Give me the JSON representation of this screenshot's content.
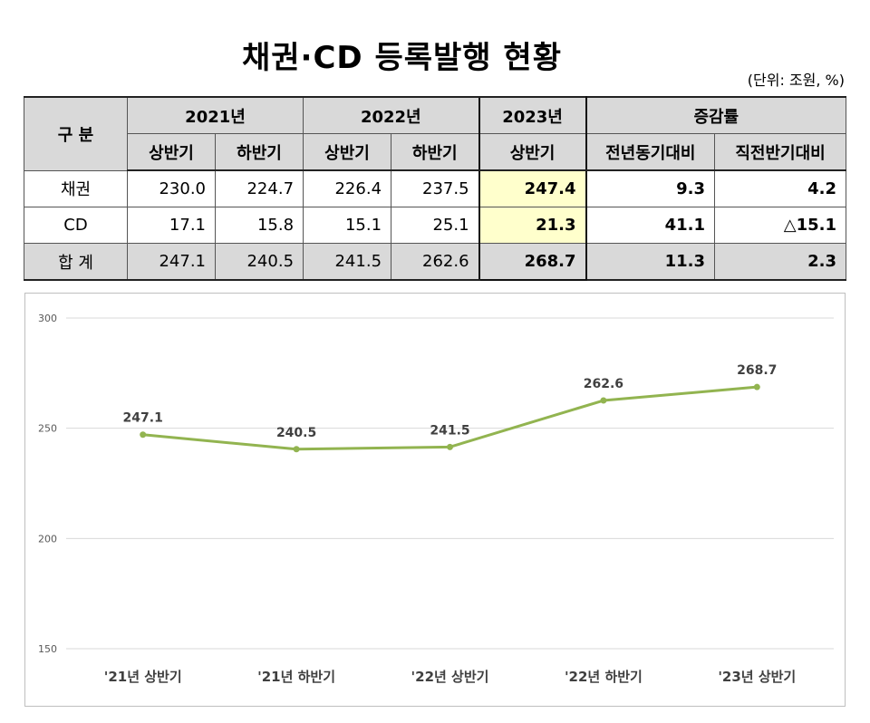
{
  "title": "채권·CD 등록발행 현황",
  "unit": "(단위: 조원, %)",
  "table": {
    "corner": "구 분",
    "year_headers": [
      "2021년",
      "2022년",
      "2023년",
      "증감률"
    ],
    "sub_headers": [
      "상반기",
      "하반기",
      "상반기",
      "하반기",
      "상반기",
      "전년동기대비",
      "직전반기대비"
    ],
    "rows": [
      {
        "label": "채권",
        "values": [
          "230.0",
          "224.7",
          "226.4",
          "237.5",
          "247.4",
          "9.3",
          "4.2"
        ]
      },
      {
        "label": "CD",
        "values": [
          "17.1",
          "15.8",
          "15.1",
          "25.1",
          "21.3",
          "41.1",
          "△15.1"
        ]
      },
      {
        "label": "합 계",
        "values": [
          "247.1",
          "240.5",
          "241.5",
          "262.6",
          "268.7",
          "11.3",
          "2.3"
        ]
      }
    ]
  },
  "chart_data": {
    "type": "line",
    "categories": [
      "'21년 상반기",
      "'21년 하반기",
      "'22년 상반기",
      "'22년 하반기",
      "'23년 상반기"
    ],
    "series": [
      {
        "values": [
          247.1,
          240.5,
          241.5,
          262.6,
          268.7
        ],
        "labels": [
          "247.1",
          "240.5",
          "241.5",
          "262.6",
          "268.7"
        ]
      }
    ],
    "y_ticks": [
      300,
      250,
      200,
      150
    ],
    "y_tick_labels": [
      "300",
      "250",
      "200",
      "150"
    ],
    "ylim": [
      150,
      300
    ],
    "grid": true,
    "line_color": "#92b450",
    "title": "",
    "xlabel": "",
    "ylabel": ""
  }
}
